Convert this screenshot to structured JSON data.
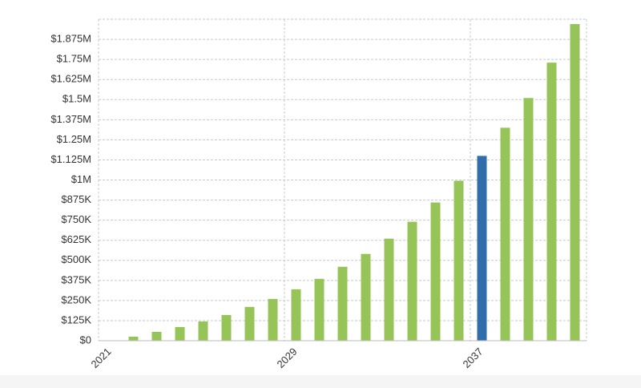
{
  "chart_data": {
    "type": "bar",
    "categories": [
      "2021",
      null,
      null,
      null,
      null,
      null,
      null,
      null,
      "2029",
      null,
      null,
      null,
      null,
      null,
      null,
      null,
      "2037",
      null,
      null,
      null,
      null
    ],
    "values": [
      0,
      25000,
      55000,
      85000,
      120000,
      160000,
      210000,
      260000,
      320000,
      385000,
      460000,
      540000,
      635000,
      740000,
      860000,
      995000,
      1150000,
      1325000,
      1510000,
      1730000,
      1970000
    ],
    "colors": [
      "#97c459",
      "#97c459",
      "#97c459",
      "#97c459",
      "#97c459",
      "#97c459",
      "#97c459",
      "#97c459",
      "#97c459",
      "#97c459",
      "#97c459",
      "#97c459",
      "#97c459",
      "#97c459",
      "#97c459",
      "#97c459",
      "#2f6eaa",
      "#97c459",
      "#97c459",
      "#97c459",
      "#97c459"
    ],
    "ylim": [
      0,
      2000000
    ],
    "yticks": [
      {
        "value": 0,
        "label": "$0"
      },
      {
        "value": 125000,
        "label": "$125K"
      },
      {
        "value": 250000,
        "label": "$250K"
      },
      {
        "value": 375000,
        "label": "$375K"
      },
      {
        "value": 500000,
        "label": "$500K"
      },
      {
        "value": 625000,
        "label": "$625K"
      },
      {
        "value": 750000,
        "label": "$750K"
      },
      {
        "value": 875000,
        "label": "$875K"
      },
      {
        "value": 1000000,
        "label": "$1M"
      },
      {
        "value": 1125000,
        "label": "$1.125M"
      },
      {
        "value": 1250000,
        "label": "$1.25M"
      },
      {
        "value": 1375000,
        "label": "$1.375M"
      },
      {
        "value": 1500000,
        "label": "$1.5M"
      },
      {
        "value": 1625000,
        "label": "$1.625M"
      },
      {
        "value": 1750000,
        "label": "$1.75M"
      },
      {
        "value": 1875000,
        "label": "$1.875M"
      }
    ],
    "grid": true
  }
}
